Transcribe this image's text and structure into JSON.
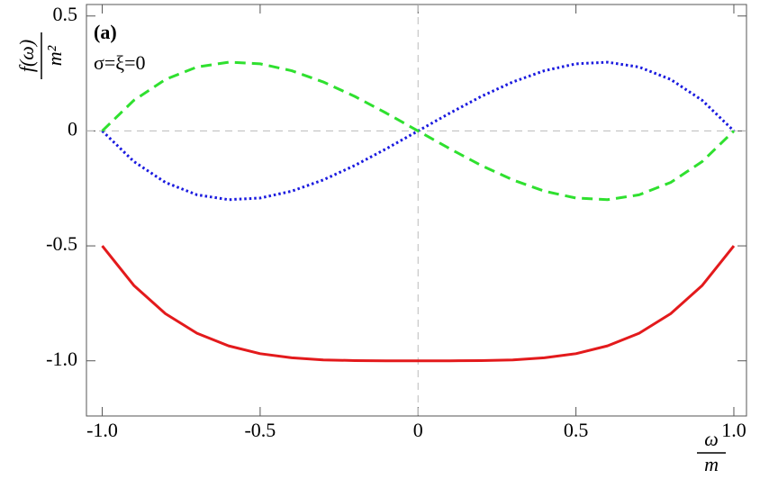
{
  "chart_data": {
    "type": "line",
    "x": [
      -1,
      -0.9,
      -0.8,
      -0.7,
      -0.6,
      -0.5,
      -0.4,
      -0.3,
      -0.2,
      -0.1,
      0,
      0.1,
      0.2,
      0.3,
      0.4,
      0.5,
      0.6,
      0.7,
      0.8,
      0.9,
      1
    ],
    "series": [
      {
        "color": "#e31a1c",
        "linestyle": "solid",
        "values": [
          -0.5,
          -0.672,
          -0.795,
          -0.88,
          -0.935,
          -0.969,
          -0.987,
          -0.996,
          -0.999,
          -1.0,
          -1.0,
          -1.0,
          -0.999,
          -0.996,
          -0.987,
          -0.969,
          -0.935,
          -0.88,
          -0.795,
          -0.672,
          -0.5
        ]
      },
      {
        "color": "#1a1adf",
        "linestyle": "dotted",
        "values": [
          0,
          -0.133,
          -0.224,
          -0.278,
          -0.299,
          -0.292,
          -0.262,
          -0.213,
          -0.15,
          -0.077,
          0,
          0.077,
          0.15,
          0.213,
          0.262,
          0.292,
          0.299,
          0.278,
          0.224,
          0.133,
          0
        ]
      },
      {
        "color": "#2fe02f",
        "linestyle": "dashed",
        "values": [
          0,
          0.133,
          0.224,
          0.278,
          0.299,
          0.292,
          0.262,
          0.213,
          0.15,
          0.077,
          0,
          -0.077,
          -0.15,
          -0.213,
          -0.262,
          -0.292,
          -0.299,
          -0.278,
          -0.224,
          -0.133,
          0
        ]
      }
    ],
    "xlim": [
      -1.05,
      1.04
    ],
    "ylim": [
      -1.24,
      0.55
    ],
    "xticks": [
      {
        "value": -1,
        "label": "-1.0"
      },
      -0.5,
      0,
      0.5,
      {
        "value": 1,
        "label": "1.0"
      }
    ],
    "yticks": [
      0.5,
      0,
      -0.5,
      {
        "value": -1,
        "label": "-1.0"
      }
    ],
    "zero_lines": true,
    "x_label": {
      "numerator": "ω",
      "denominator": "m"
    },
    "y_label": {
      "numerator": "f(ω)",
      "denominator": "m²"
    },
    "annotations": [
      "(a)",
      "σ=ξ=0"
    ]
  }
}
